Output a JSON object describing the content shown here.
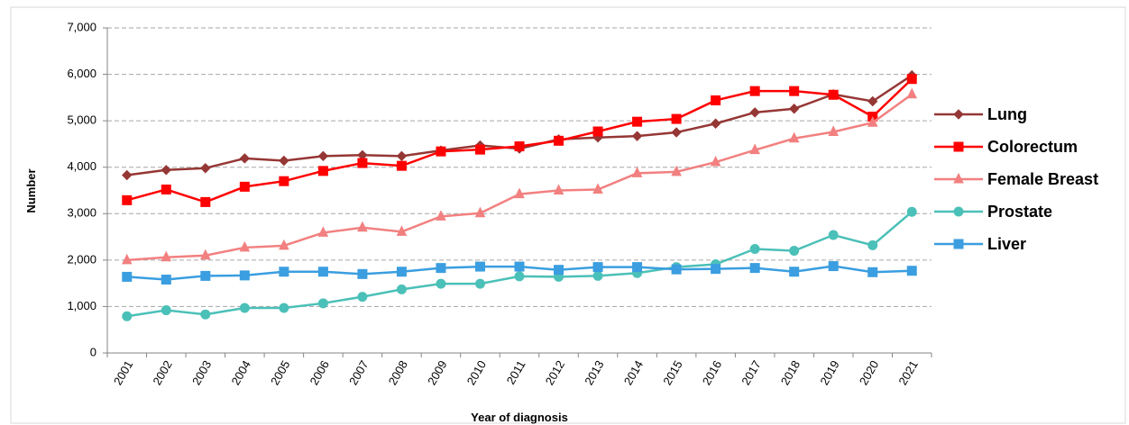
{
  "chart_data": {
    "type": "line",
    "xlabel": "Year of diagnosis",
    "ylabel": "Number",
    "categories": [
      "2001",
      "2002",
      "2003",
      "2004",
      "2005",
      "2006",
      "2007",
      "2008",
      "2009",
      "2010",
      "2011",
      "2012",
      "2013",
      "2014",
      "2015",
      "2016",
      "2017",
      "2018",
      "2019",
      "2020",
      "2021"
    ],
    "series": [
      {
        "name": "Lung",
        "color": "#953735",
        "marker": "diamond",
        "values": [
          3830,
          3940,
          3980,
          4190,
          4140,
          4240,
          4260,
          4240,
          4360,
          4470,
          4400,
          4600,
          4640,
          4670,
          4750,
          4940,
          5180,
          5260,
          5570,
          5420,
          5980
        ]
      },
      {
        "name": "Colorectum",
        "color": "#ff0000",
        "marker": "square",
        "values": [
          3290,
          3520,
          3250,
          3580,
          3700,
          3920,
          4090,
          4030,
          4340,
          4380,
          4450,
          4570,
          4770,
          4980,
          5040,
          5440,
          5640,
          5640,
          5560,
          5090,
          5900
        ]
      },
      {
        "name": "Female Breast",
        "color": "#f28080",
        "marker": "triangle",
        "values": [
          2000,
          2060,
          2100,
          2270,
          2310,
          2590,
          2700,
          2610,
          2940,
          3010,
          3420,
          3500,
          3520,
          3870,
          3900,
          4110,
          4370,
          4620,
          4760,
          4960,
          5570
        ]
      },
      {
        "name": "Prostate",
        "color": "#4bc0b8",
        "marker": "circle",
        "values": [
          790,
          920,
          830,
          970,
          970,
          1070,
          1210,
          1370,
          1490,
          1490,
          1650,
          1640,
          1660,
          1720,
          1850,
          1910,
          2240,
          2200,
          2540,
          2320,
          3040
        ]
      },
      {
        "name": "Liver",
        "color": "#3a9ee0",
        "marker": "square",
        "values": [
          1640,
          1580,
          1660,
          1670,
          1750,
          1750,
          1700,
          1750,
          1830,
          1860,
          1860,
          1790,
          1850,
          1850,
          1800,
          1810,
          1830,
          1750,
          1870,
          1740,
          1770
        ]
      }
    ],
    "ylim": [
      0,
      7000
    ],
    "yticks": [
      0,
      {
        "value": 1000,
        "label": "1,000"
      },
      {
        "value": 2000,
        "label": "2,000"
      },
      {
        "value": 3000,
        "label": "3,000"
      },
      {
        "value": 4000,
        "label": "4,000"
      },
      {
        "value": 5000,
        "label": "5,000"
      },
      {
        "value": 6000,
        "label": "6,000"
      },
      {
        "value": 7000,
        "label": "7,000"
      }
    ],
    "grid": true,
    "legend": "right"
  }
}
